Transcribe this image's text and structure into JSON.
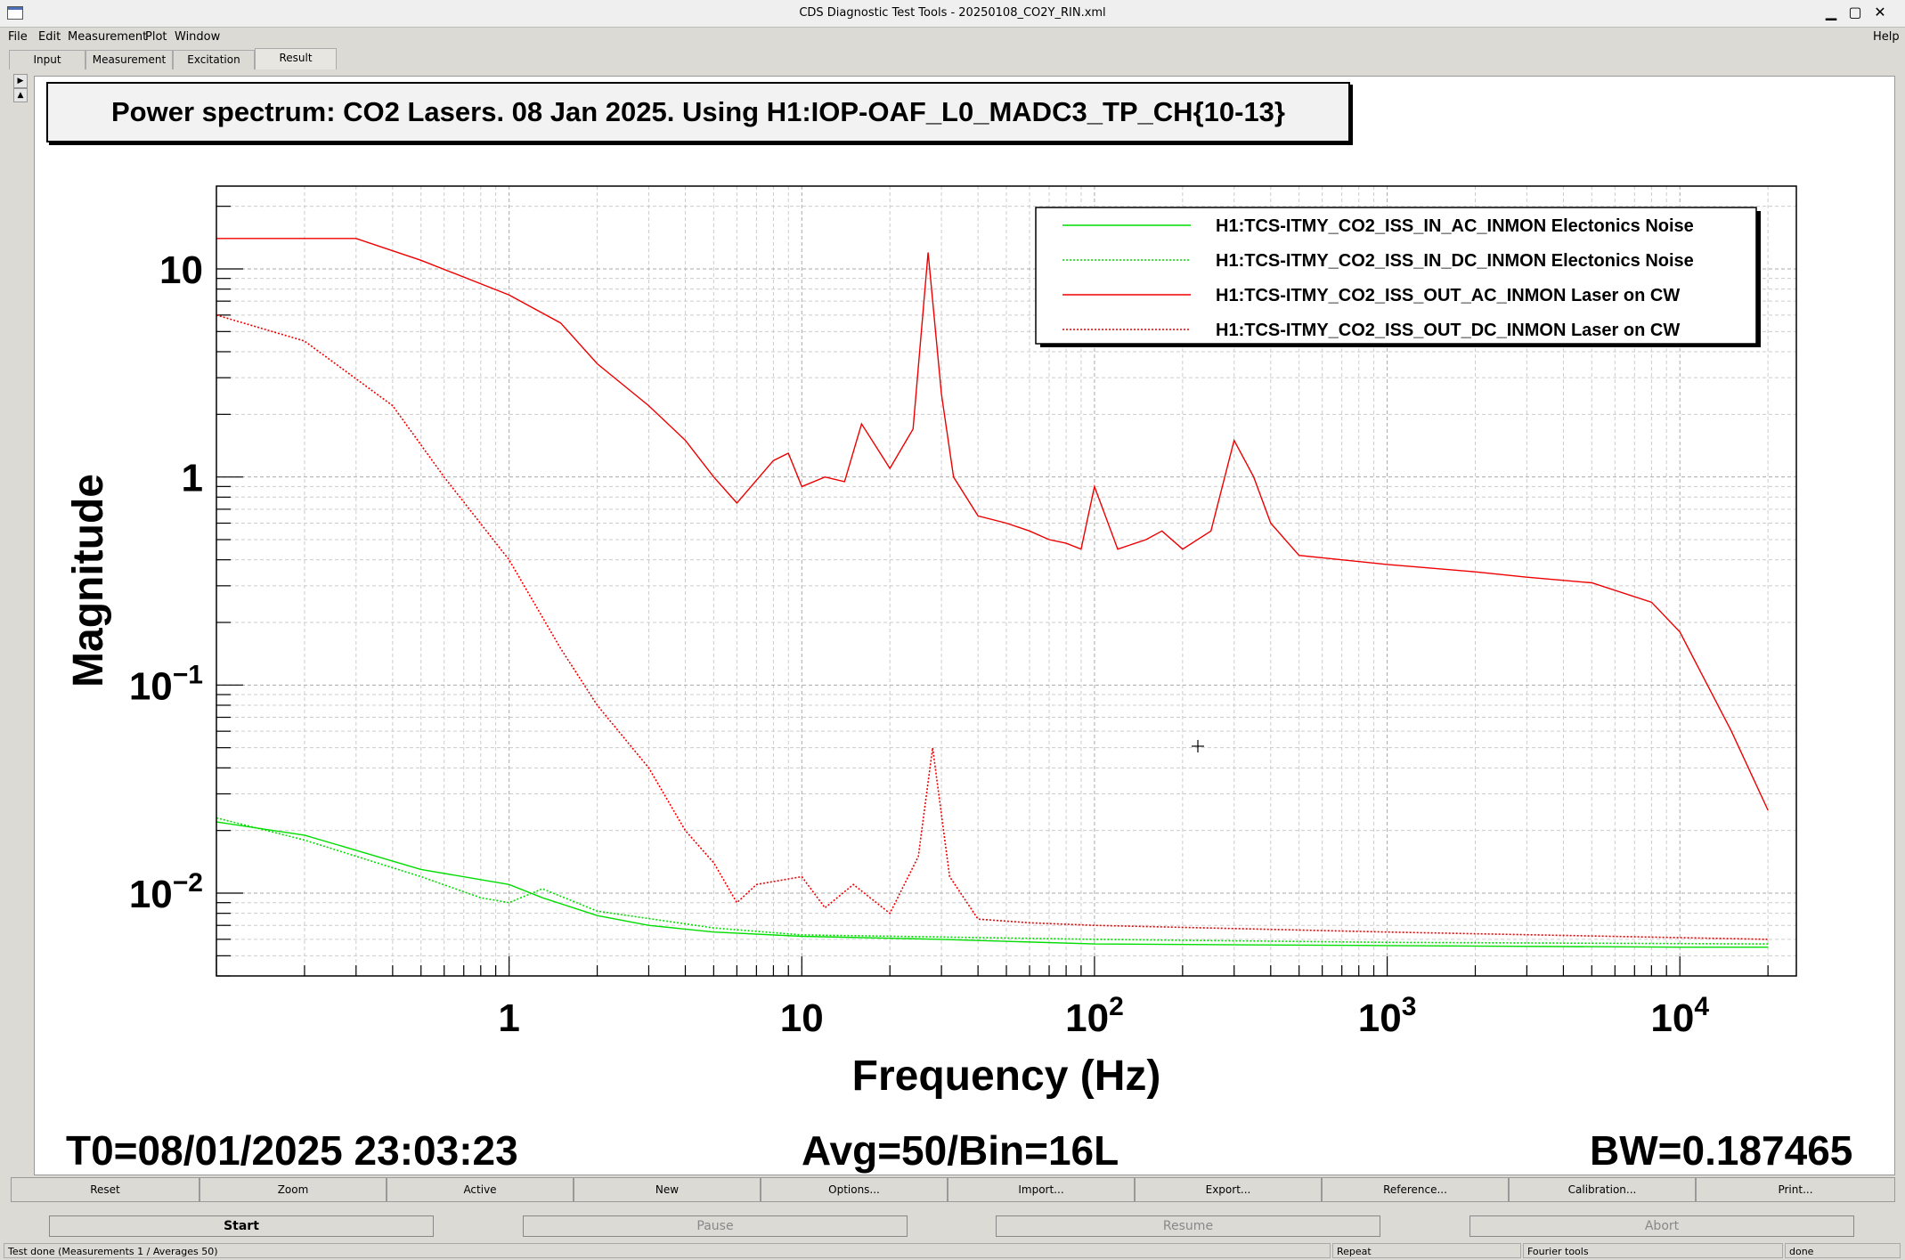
{
  "window": {
    "title": "CDS Diagnostic Test Tools - 20250108_CO2Y_RIN.xml",
    "minimize": "▁",
    "maximize": "▢",
    "close": "✕"
  },
  "menu": [
    {
      "label": "File"
    },
    {
      "label": "Edit"
    },
    {
      "label": "Measurement"
    },
    {
      "label": "Plot"
    },
    {
      "label": "Window"
    }
  ],
  "menu_help": "Help",
  "tabs": [
    {
      "label": "Input"
    },
    {
      "label": "Measurement"
    },
    {
      "label": "Excitation"
    },
    {
      "label": "Result",
      "active": true
    }
  ],
  "plot": {
    "title": "Power spectrum: CO2 Lasers. 08 Jan 2025. Using H1:IOP-OAF_L0_MADC3_TP_CH{10-13}",
    "footer_left": "T0=08/01/2025 23:03:23",
    "footer_center": "Avg=50/Bin=16L",
    "footer_right": "BW=0.187465"
  },
  "chart_data": {
    "type": "line",
    "title": "Power spectrum: CO2 Lasers. 08 Jan 2025. Using H1:IOP-OAF_L0_MADC3_TP_CH{10-13}",
    "xlabel": "Frequency (Hz)",
    "ylabel": "Magnitude",
    "xscale": "log",
    "yscale": "log",
    "xlim": [
      0.1,
      25000
    ],
    "ylim": [
      0.004,
      25
    ],
    "x_tick_labels": [
      {
        "value": 1,
        "base": "1",
        "exp": ""
      },
      {
        "value": 10,
        "base": "10",
        "exp": ""
      },
      {
        "value": 100,
        "base": "10",
        "exp": "2"
      },
      {
        "value": 1000,
        "base": "10",
        "exp": "3"
      },
      {
        "value": 10000,
        "base": "10",
        "exp": "4"
      }
    ],
    "y_tick_labels": [
      {
        "value": 10,
        "base": "10",
        "exp": ""
      },
      {
        "value": 1,
        "base": "1",
        "exp": ""
      },
      {
        "value": 0.1,
        "base": "10",
        "exp": "−1"
      },
      {
        "value": 0.01,
        "base": "10",
        "exp": "−2"
      }
    ],
    "grid": true,
    "legend_position": "top-right",
    "series": [
      {
        "name": "H1:TCS-ITMY_CO2_ISS_IN_AC_INMON Electonics Noise",
        "color": "#00dd00",
        "dash": "solid",
        "x": [
          0.1,
          0.2,
          0.5,
          1,
          1.3,
          2,
          3,
          5,
          10,
          30,
          100,
          1000,
          10000,
          20000
        ],
        "y": [
          0.022,
          0.019,
          0.013,
          0.011,
          0.0095,
          0.0078,
          0.007,
          0.0065,
          0.0062,
          0.006,
          0.0057,
          0.0056,
          0.0055,
          0.0055
        ]
      },
      {
        "name": "H1:TCS-ITMY_CO2_ISS_IN_DC_INMON Electonics Noise",
        "color": "#00dd00",
        "dash": "dotted",
        "x": [
          0.1,
          0.2,
          0.5,
          0.8,
          1,
          1.3,
          2,
          5,
          10,
          100,
          1000,
          20000
        ],
        "y": [
          0.023,
          0.018,
          0.012,
          0.0095,
          0.009,
          0.0105,
          0.0082,
          0.0068,
          0.0063,
          0.006,
          0.0058,
          0.0057
        ]
      },
      {
        "name": "H1:TCS-ITMY_CO2_ISS_OUT_AC_INMON Laser on CW",
        "color": "#ee0000",
        "dash": "solid",
        "x": [
          0.1,
          0.3,
          0.5,
          1,
          1.5,
          2,
          3,
          4,
          5,
          6,
          8,
          9,
          10,
          12,
          14,
          16,
          20,
          24,
          27,
          30,
          33,
          40,
          50,
          60,
          70,
          80,
          90,
          100,
          120,
          150,
          170,
          200,
          250,
          300,
          350,
          400,
          500,
          700,
          1000,
          2000,
          3000,
          5000,
          8000,
          10000,
          15000,
          20000
        ],
        "y": [
          14,
          14,
          11,
          7.5,
          5.5,
          3.5,
          2.2,
          1.5,
          1.0,
          0.75,
          1.2,
          1.3,
          0.9,
          1.0,
          0.95,
          1.8,
          1.1,
          1.7,
          12,
          2.5,
          1.0,
          0.65,
          0.6,
          0.55,
          0.5,
          0.48,
          0.45,
          0.9,
          0.45,
          0.5,
          0.55,
          0.45,
          0.55,
          1.5,
          1.0,
          0.6,
          0.42,
          0.4,
          0.38,
          0.35,
          0.33,
          0.31,
          0.25,
          0.18,
          0.06,
          0.025
        ]
      },
      {
        "name": "H1:TCS-ITMY_CO2_ISS_OUT_DC_INMON Laser on CW",
        "color": "#ee0000",
        "dash": "dotted",
        "x": [
          0.1,
          0.2,
          0.4,
          0.6,
          1,
          1.5,
          2,
          3,
          4,
          5,
          6,
          7,
          10,
          12,
          15,
          20,
          25,
          28,
          32,
          40,
          60,
          100,
          1000,
          20000
        ],
        "y": [
          6,
          4.5,
          2.2,
          1.0,
          0.4,
          0.15,
          0.08,
          0.04,
          0.02,
          0.014,
          0.009,
          0.011,
          0.012,
          0.0085,
          0.011,
          0.008,
          0.015,
          0.05,
          0.012,
          0.0075,
          0.0072,
          0.007,
          0.0065,
          0.006
        ]
      }
    ]
  },
  "toolbar": [
    {
      "label": "Reset"
    },
    {
      "label": "Zoom"
    },
    {
      "label": "Active"
    },
    {
      "label": "New"
    },
    {
      "label": "Options..."
    },
    {
      "label": "Import..."
    },
    {
      "label": "Export..."
    },
    {
      "label": "Reference..."
    },
    {
      "label": "Calibration..."
    },
    {
      "label": "Print..."
    }
  ],
  "controls": [
    {
      "label": "Start",
      "enabled": true
    },
    {
      "label": "Pause",
      "enabled": false
    },
    {
      "label": "Resume",
      "enabled": false
    },
    {
      "label": "Abort",
      "enabled": false
    }
  ],
  "status": {
    "message": "Test done (Measurements 1 / Averages 50)",
    "repeat": "Repeat",
    "tools": "Fourier tools",
    "state": "done"
  }
}
